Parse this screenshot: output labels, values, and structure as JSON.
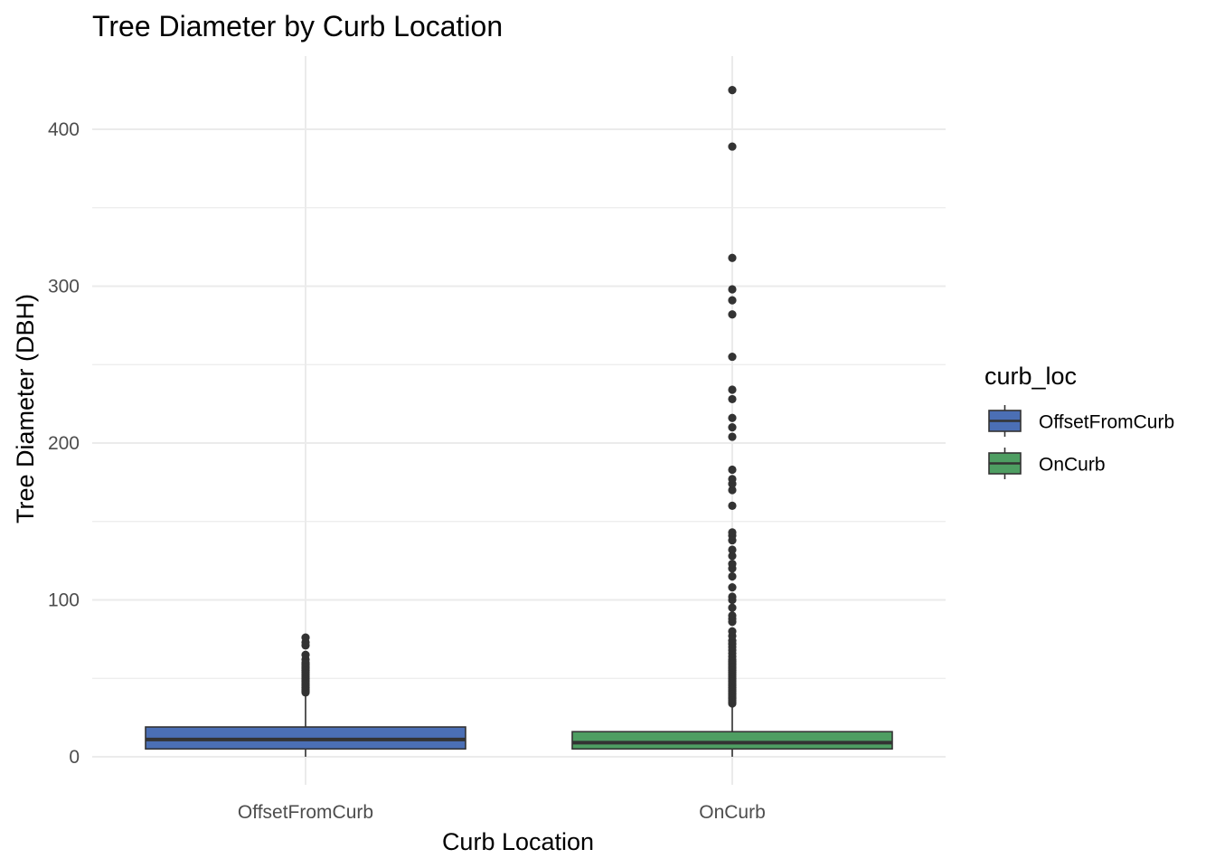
{
  "chart_data": {
    "type": "boxplot",
    "title": "Tree Diameter by Curb Location",
    "xlabel": "Curb Location",
    "ylabel": "Tree Diameter (DBH)",
    "categories": [
      "OffsetFromCurb",
      "OnCurb"
    ],
    "ylim": [
      -20,
      445
    ],
    "yticks": [
      0,
      100,
      200,
      300,
      400
    ],
    "grid": true,
    "legend": {
      "title": "curb_loc",
      "placement": "right",
      "entries": [
        "OffsetFromCurb",
        "OnCurb"
      ]
    },
    "series": [
      {
        "name": "OffsetFromCurb",
        "color": "#4b6fb5",
        "q1": 5,
        "median": 11,
        "q3": 19,
        "whisker_low": 0,
        "whisker_high": 40,
        "outliers": [
          41,
          42,
          43,
          44,
          45,
          46,
          47,
          48,
          49,
          50,
          51,
          52,
          53,
          54,
          55,
          56,
          57,
          58,
          59,
          60,
          62,
          65,
          71,
          73,
          76
        ]
      },
      {
        "name": "OnCurb",
        "color": "#4e9e62",
        "q1": 5,
        "median": 9,
        "q3": 16,
        "whisker_low": 0,
        "whisker_high": 33,
        "outliers": [
          34,
          35,
          36,
          37,
          38,
          39,
          40,
          41,
          42,
          43,
          44,
          45,
          46,
          47,
          48,
          49,
          50,
          51,
          52,
          53,
          54,
          55,
          56,
          57,
          58,
          59,
          60,
          61,
          62,
          64,
          66,
          68,
          70,
          72,
          74,
          77,
          80,
          86,
          88,
          90,
          95,
          100,
          102,
          108,
          115,
          120,
          123,
          128,
          132,
          138,
          141,
          143,
          160,
          170,
          174,
          177,
          183,
          204,
          210,
          216,
          228,
          234,
          255,
          282,
          291,
          298,
          318,
          389,
          425
        ]
      }
    ]
  }
}
